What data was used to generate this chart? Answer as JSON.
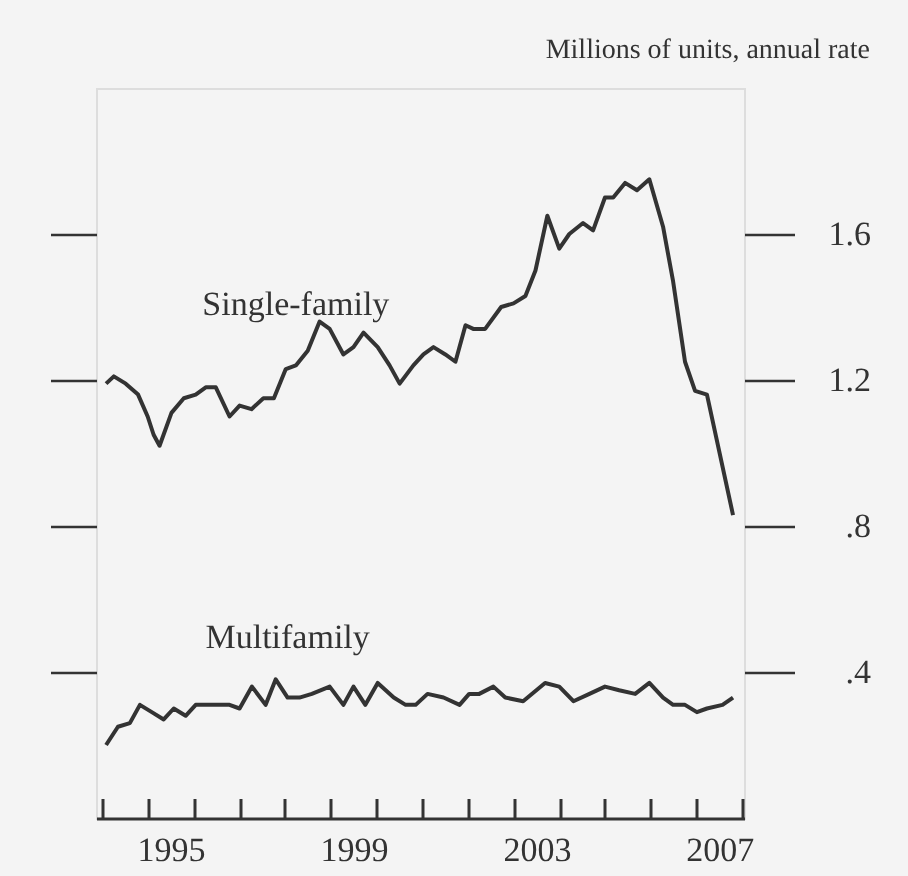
{
  "chart_data": {
    "type": "line",
    "ylabel": "Millions of units, annual rate",
    "xlim": [
      1993.87,
      2008.04
    ],
    "ylim": [
      0,
      2
    ],
    "xticks": [
      {
        "value": 1994,
        "label": null
      },
      {
        "value": 1995,
        "label": null
      },
      {
        "value": 1996,
        "label": null
      },
      {
        "value": 1997,
        "label": null
      },
      {
        "value": 1998,
        "label": null
      },
      {
        "value": 1999,
        "label": null
      },
      {
        "value": 2000,
        "label": null
      },
      {
        "value": 2001,
        "label": null
      },
      {
        "value": 2002,
        "label": null
      },
      {
        "value": 2003,
        "label": null
      },
      {
        "value": 2004,
        "label": null
      },
      {
        "value": 2005,
        "label": null
      },
      {
        "value": 2006,
        "label": null
      },
      {
        "value": 2007,
        "label": null
      },
      {
        "value": 2008,
        "label": null
      },
      {
        "value": 1995.5,
        "label": "1995"
      },
      {
        "value": 1999.5,
        "label": "1999"
      },
      {
        "value": 2003.5,
        "label": "2003"
      },
      {
        "value": 2007.5,
        "label": "2007"
      }
    ],
    "yticks": [
      {
        "value": 0.4,
        "label": ".4"
      },
      {
        "value": 0.8,
        "label": ".8"
      },
      {
        "value": 1.2,
        "label": "1.2"
      },
      {
        "value": 1.6,
        "label": "1.6"
      }
    ],
    "grid": false,
    "legend": false,
    "marker": "none",
    "line_style": "solid",
    "series": [
      {
        "name": "Single-family",
        "color": "#333333",
        "x": [
          1994.09,
          1994.26,
          1994.52,
          1994.79,
          1995.0,
          1995.13,
          1995.26,
          1995.52,
          1995.79,
          1996.05,
          1996.27,
          1996.49,
          1996.79,
          1997.01,
          1997.27,
          1997.53,
          1997.76,
          1998.02,
          1998.24,
          1998.5,
          1998.76,
          1998.98,
          1999.28,
          1999.5,
          1999.72,
          2000.03,
          2000.29,
          2000.51,
          2000.81,
          2001.03,
          2001.25,
          2001.51,
          2001.73,
          2001.95,
          2002.12,
          2002.38,
          2002.73,
          2003.0,
          2003.26,
          2003.48,
          2003.74,
          2004.0,
          2004.22,
          2004.52,
          2004.74,
          2005.0,
          2005.18,
          2005.44,
          2005.7,
          2005.97,
          2006.27,
          2006.49,
          2006.75,
          2006.97,
          2007.23,
          2007.8
        ],
        "values": [
          1.19,
          1.21,
          1.19,
          1.16,
          1.1,
          1.05,
          1.02,
          1.11,
          1.15,
          1.16,
          1.18,
          1.18,
          1.1,
          1.13,
          1.12,
          1.15,
          1.15,
          1.23,
          1.24,
          1.28,
          1.36,
          1.34,
          1.27,
          1.29,
          1.33,
          1.29,
          1.24,
          1.19,
          1.24,
          1.27,
          1.29,
          1.27,
          1.25,
          1.35,
          1.34,
          1.34,
          1.4,
          1.41,
          1.43,
          1.5,
          1.65,
          1.56,
          1.6,
          1.63,
          1.61,
          1.7,
          1.7,
          1.74,
          1.72,
          1.75,
          1.62,
          1.47,
          1.25,
          1.17,
          1.16,
          0.83
        ]
      },
      {
        "name": "Multifamily",
        "color": "#333333",
        "x": [
          1994.09,
          1994.35,
          1994.61,
          1994.83,
          1995.09,
          1995.35,
          1995.57,
          1995.83,
          1996.05,
          1996.36,
          1996.58,
          1996.79,
          1997.01,
          1997.28,
          1997.58,
          1997.8,
          1998.06,
          1998.32,
          1998.59,
          1998.98,
          1999.28,
          1999.5,
          1999.76,
          2000.03,
          2000.38,
          2000.64,
          2000.86,
          2001.12,
          2001.47,
          2001.82,
          2002.03,
          2002.25,
          2002.56,
          2002.82,
          2003.21,
          2003.69,
          2004.0,
          2004.31,
          2004.66,
          2005.0,
          2005.31,
          2005.66,
          2005.97,
          2006.27,
          2006.49,
          2006.75,
          2007.01,
          2007.23,
          2007.57,
          2007.8
        ],
        "values": [
          0.2,
          0.25,
          0.26,
          0.31,
          0.29,
          0.27,
          0.3,
          0.28,
          0.31,
          0.31,
          0.31,
          0.31,
          0.3,
          0.36,
          0.31,
          0.38,
          0.33,
          0.33,
          0.34,
          0.36,
          0.31,
          0.36,
          0.31,
          0.37,
          0.33,
          0.31,
          0.31,
          0.34,
          0.33,
          0.31,
          0.34,
          0.34,
          0.36,
          0.33,
          0.32,
          0.37,
          0.36,
          0.32,
          0.34,
          0.36,
          0.35,
          0.34,
          0.37,
          0.33,
          0.31,
          0.31,
          0.29,
          0.3,
          0.31,
          0.33
        ]
      }
    ]
  }
}
